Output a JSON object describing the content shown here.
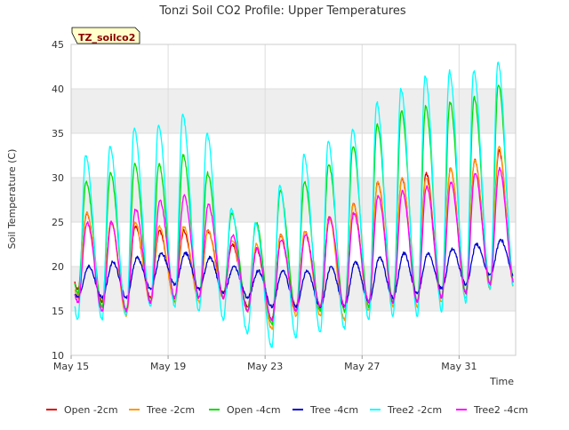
{
  "chart_data": {
    "type": "line",
    "title": "Tonzi Soil CO2 Profile: Upper Temperatures",
    "xlabel": "Time",
    "ylabel": "Soil Temperature (C)",
    "site_tag": "TZ_soilco2",
    "ylim": [
      10,
      45
    ],
    "yticks": [
      10,
      15,
      20,
      25,
      30,
      35,
      40,
      45
    ],
    "xlim": [
      "2025-05-15",
      "2025-06-02T08:00"
    ],
    "xticks": [
      {
        "date": "2025-05-15",
        "label": "May 15"
      },
      {
        "date": "2025-05-19",
        "label": "May 19"
      },
      {
        "date": "2025-05-23",
        "label": "May 23"
      },
      {
        "date": "2025-05-27",
        "label": "May 27"
      },
      {
        "date": "2025-05-31",
        "label": "May 31"
      }
    ],
    "background_bands": [
      [
        15,
        20
      ],
      [
        25,
        30
      ],
      [
        35,
        40
      ]
    ],
    "grid": true,
    "legend_position": "bottom",
    "days": [
      "May 15",
      "May 16",
      "May 17",
      "May 18",
      "May 19",
      "May 20",
      "May 21",
      "May 22",
      "May 23",
      "May 24",
      "May 25",
      "May 26",
      "May 27",
      "May 28",
      "May 29",
      "May 30",
      "May 31",
      "Jun 1"
    ],
    "series": [
      {
        "name": "Open -2cm",
        "color": "#dd0000",
        "daily_min": [
          17.5,
          16.0,
          15.0,
          16.5,
          16.5,
          16.5,
          17.0,
          15.5,
          14.0,
          15.5,
          15.5,
          15.5,
          16.0,
          16.0,
          16.0,
          16.5,
          17.0,
          18.0
        ],
        "daily_max": [
          26.0,
          25.0,
          24.5,
          24.0,
          24.0,
          24.0,
          22.5,
          22.0,
          23.5,
          24.0,
          25.5,
          27.0,
          29.5,
          30.0,
          30.5,
          31.0,
          32.0,
          33.0
        ]
      },
      {
        "name": "Tree -2cm",
        "color": "#ff9900",
        "daily_min": [
          16.5,
          15.5,
          14.5,
          16.0,
          16.0,
          16.0,
          16.5,
          15.0,
          13.0,
          14.5,
          14.5,
          14.0,
          15.0,
          15.5,
          15.5,
          16.0,
          16.5,
          17.5
        ],
        "daily_max": [
          26.0,
          25.0,
          25.0,
          24.5,
          24.5,
          24.0,
          23.0,
          22.5,
          23.5,
          24.0,
          25.5,
          27.0,
          29.5,
          30.0,
          30.0,
          31.0,
          32.0,
          33.5
        ]
      },
      {
        "name": "Open -4cm",
        "color": "#00dd00",
        "daily_min": [
          17.0,
          15.5,
          15.0,
          16.0,
          16.0,
          16.5,
          16.5,
          15.0,
          13.5,
          15.0,
          15.0,
          15.0,
          15.5,
          16.0,
          16.0,
          16.5,
          17.0,
          18.0
        ],
        "daily_max": [
          29.5,
          30.5,
          31.5,
          31.5,
          32.5,
          30.5,
          26.0,
          25.0,
          28.5,
          29.5,
          31.5,
          33.5,
          36.0,
          37.5,
          38.0,
          38.5,
          39.0,
          40.5
        ]
      },
      {
        "name": "Tree -4cm",
        "color": "#0000cc",
        "daily_min": [
          16.5,
          16.5,
          16.5,
          17.5,
          18.0,
          17.5,
          17.0,
          16.5,
          15.5,
          15.5,
          15.5,
          15.5,
          16.0,
          16.5,
          17.0,
          17.5,
          18.0,
          19.0
        ],
        "daily_max": [
          20.0,
          20.5,
          21.0,
          21.5,
          21.5,
          21.0,
          20.0,
          19.5,
          19.5,
          19.5,
          20.0,
          20.5,
          21.0,
          21.5,
          21.5,
          22.0,
          22.5,
          23.0
        ]
      },
      {
        "name": "Tree2 -2cm",
        "color": "#00ffff",
        "daily_min": [
          14.0,
          14.0,
          14.5,
          15.5,
          15.5,
          15.0,
          14.0,
          12.5,
          11.0,
          12.0,
          12.5,
          13.0,
          14.0,
          14.5,
          14.5,
          15.0,
          16.0,
          17.5
        ],
        "daily_max": [
          32.5,
          33.5,
          35.5,
          36.0,
          37.0,
          35.0,
          26.5,
          25.0,
          29.0,
          32.5,
          34.0,
          35.5,
          38.5,
          40.0,
          41.5,
          42.0,
          42.0,
          43.0
        ]
      },
      {
        "name": "Tree2 -4cm",
        "color": "#ff00ff",
        "daily_min": [
          16.0,
          15.0,
          15.0,
          16.0,
          16.5,
          16.5,
          16.5,
          15.0,
          14.0,
          15.0,
          15.5,
          15.5,
          16.0,
          16.0,
          16.0,
          16.5,
          17.0,
          18.0
        ],
        "daily_max": [
          25.0,
          25.0,
          26.5,
          27.5,
          28.0,
          27.0,
          23.5,
          22.0,
          23.0,
          23.5,
          25.5,
          26.0,
          28.0,
          28.5,
          29.0,
          29.5,
          30.5,
          31.0
        ]
      }
    ]
  },
  "colors": {
    "band": "#eeeeee",
    "grid": "#dddddd",
    "axis": "#999999",
    "text": "#333333",
    "tag_fill": "#ffffcc",
    "tag_text": "#8b0000"
  }
}
